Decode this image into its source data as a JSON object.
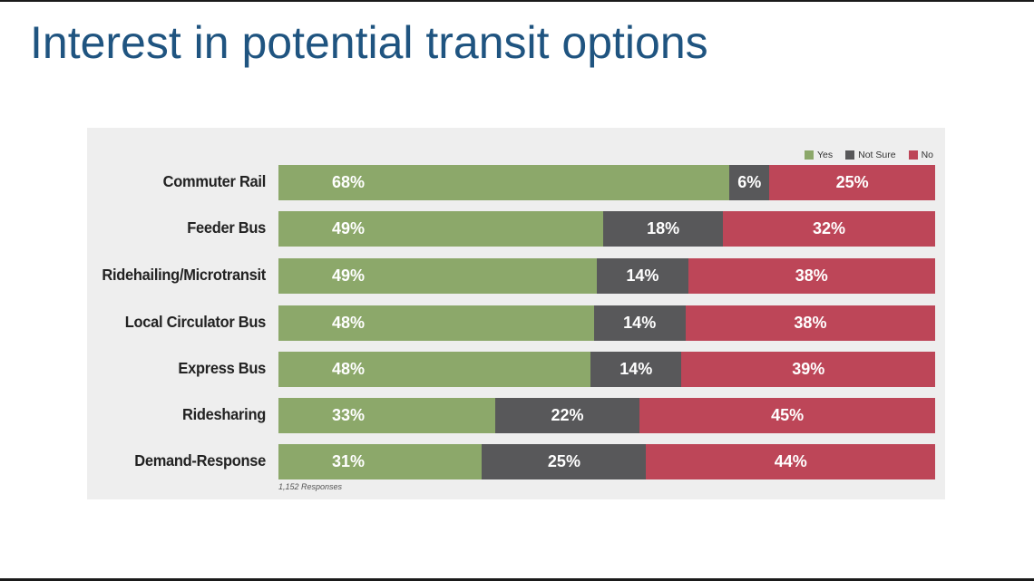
{
  "slide": {
    "title": "Interest in potential transit options"
  },
  "chart_data": {
    "type": "bar",
    "orientation": "horizontal",
    "stacked": true,
    "units": "percent",
    "categories": [
      "Commuter Rail",
      "Feeder Bus",
      "Ridehailing/Microtransit",
      "Local Circulator Bus",
      "Express Bus",
      "Ridesharing",
      "Demand-Response"
    ],
    "series": [
      {
        "name": "Yes",
        "color": "#8ca86a",
        "values": [
          68,
          49,
          49,
          48,
          48,
          33,
          31
        ]
      },
      {
        "name": "Not Sure",
        "color": "#58585a",
        "values": [
          6,
          18,
          14,
          14,
          14,
          22,
          25
        ]
      },
      {
        "name": "No",
        "color": "#bd4658",
        "values": [
          25,
          32,
          38,
          38,
          39,
          45,
          44
        ]
      }
    ],
    "value_labels": [
      [
        "68%",
        "6%",
        "25%"
      ],
      [
        "49%",
        "18%",
        "32%"
      ],
      [
        "49%",
        "14%",
        "38%"
      ],
      [
        "48%",
        "14%",
        "38%"
      ],
      [
        "48%",
        "14%",
        "39%"
      ],
      [
        "33%",
        "22%",
        "45%"
      ],
      [
        "31%",
        "25%",
        "44%"
      ]
    ],
    "legend_position": "top-right",
    "grid": false,
    "xlim": [
      0,
      100
    ],
    "footnote": "1,152 Responses"
  }
}
